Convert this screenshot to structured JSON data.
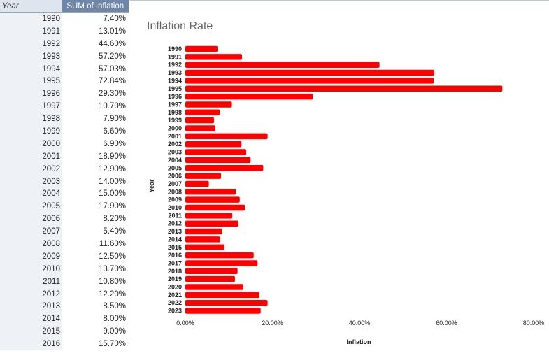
{
  "table": {
    "header_year": "Year",
    "header_value": "SUM of Inflation",
    "rows": [
      {
        "year": "1990",
        "value": "7.40%"
      },
      {
        "year": "1991",
        "value": "13.01%"
      },
      {
        "year": "1992",
        "value": "44.60%"
      },
      {
        "year": "1993",
        "value": "57.20%"
      },
      {
        "year": "1994",
        "value": "57.03%"
      },
      {
        "year": "1995",
        "value": "72.84%"
      },
      {
        "year": "1996",
        "value": "29.30%"
      },
      {
        "year": "1997",
        "value": "10.70%"
      },
      {
        "year": "1998",
        "value": "7.90%"
      },
      {
        "year": "1999",
        "value": "6.60%"
      },
      {
        "year": "2000",
        "value": "6.90%"
      },
      {
        "year": "2001",
        "value": "18.90%"
      },
      {
        "year": "2002",
        "value": "12.90%"
      },
      {
        "year": "2003",
        "value": "14.00%"
      },
      {
        "year": "2004",
        "value": "15.00%"
      },
      {
        "year": "2005",
        "value": "17.90%"
      },
      {
        "year": "2006",
        "value": "8.20%"
      },
      {
        "year": "2007",
        "value": "5.40%"
      },
      {
        "year": "2008",
        "value": "11.60%"
      },
      {
        "year": "2009",
        "value": "12.50%"
      },
      {
        "year": "2010",
        "value": "13.70%"
      },
      {
        "year": "2011",
        "value": "10.80%"
      },
      {
        "year": "2012",
        "value": "12.20%"
      },
      {
        "year": "2013",
        "value": "8.50%"
      },
      {
        "year": "2014",
        "value": "8.00%"
      },
      {
        "year": "2015",
        "value": "9.00%"
      },
      {
        "year": "2016",
        "value": "15.70%"
      }
    ]
  },
  "chart_data": {
    "type": "bar",
    "orientation": "horizontal",
    "title": "Inflation Rate",
    "xlabel": "Inflation",
    "ylabel": "Year",
    "xlim": [
      0,
      80
    ],
    "xticks": [
      "0.00%",
      "20.00%",
      "40.00%",
      "60.00%",
      "80.00%"
    ],
    "bar_color": "#ff0000",
    "grid": false,
    "legend": "none",
    "categories": [
      "1990",
      "1991",
      "1992",
      "1993",
      "1994",
      "1995",
      "1996",
      "1997",
      "1998",
      "1999",
      "2000",
      "2001",
      "2002",
      "2003",
      "2004",
      "2005",
      "2006",
      "2007",
      "2008",
      "2009",
      "2010",
      "2011",
      "2012",
      "2013",
      "2014",
      "2015",
      "2016",
      "2017",
      "2018",
      "2019",
      "2020",
      "2021",
      "2022",
      "2023"
    ],
    "values": [
      7.4,
      13.01,
      44.6,
      57.2,
      57.03,
      72.84,
      29.3,
      10.7,
      7.9,
      6.6,
      6.9,
      18.9,
      12.9,
      14.0,
      15.0,
      17.9,
      8.2,
      5.4,
      11.6,
      12.5,
      13.7,
      10.8,
      12.2,
      8.5,
      8.0,
      9.0,
      15.7,
      16.6,
      12.0,
      11.4,
      13.3,
      17.0,
      18.9,
      17.3
    ]
  }
}
